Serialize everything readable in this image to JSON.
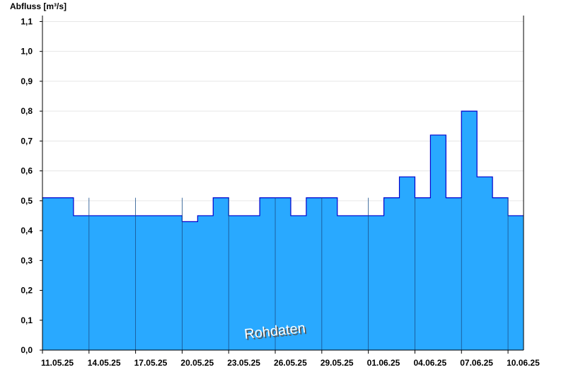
{
  "chart_data": {
    "type": "area",
    "y_axis_label": "Abfluss [m³/s]",
    "annotation": "Rohdaten",
    "x": [
      "11.05.25",
      "12.05.25",
      "13.05.25",
      "14.05.25",
      "15.05.25",
      "16.05.25",
      "17.05.25",
      "18.05.25",
      "19.05.25",
      "20.05.25",
      "21.05.25",
      "22.05.25",
      "23.05.25",
      "24.05.25",
      "25.05.25",
      "26.05.25",
      "27.05.25",
      "28.05.25",
      "29.05.25",
      "30.05.25",
      "31.05.25",
      "01.06.25",
      "02.06.25",
      "03.06.25",
      "04.06.25",
      "05.06.25",
      "06.06.25",
      "07.06.25",
      "08.06.25",
      "09.06.25",
      "10.06.25"
    ],
    "series": [
      {
        "color": "#29a9ff",
        "line_color": "#0000cc",
        "values": [
          0.51,
          0.51,
          0.45,
          0.45,
          0.45,
          0.45,
          0.45,
          0.45,
          0.45,
          0.43,
          0.45,
          0.51,
          0.45,
          0.45,
          0.51,
          0.51,
          0.45,
          0.51,
          0.51,
          0.45,
          0.45,
          0.45,
          0.51,
          0.58,
          0.51,
          0.72,
          0.51,
          0.8,
          0.58,
          0.51,
          0.45
        ]
      }
    ],
    "xlim": [
      "11.05.25",
      "11.06.25"
    ],
    "xticks": [
      "11.05.25",
      "14.05.25",
      "17.05.25",
      "20.05.25",
      "23.05.25",
      "26.05.25",
      "29.05.25",
      "01.06.25",
      "04.06.25",
      "07.06.25",
      "10.06.25"
    ],
    "ylim": [
      0,
      1.12
    ],
    "yticks": [
      {
        "value": 0,
        "label": "0,0"
      },
      {
        "value": 0.1,
        "label": "0,1"
      },
      {
        "value": 0.2,
        "label": "0,2"
      },
      {
        "value": 0.3,
        "label": "0,3"
      },
      {
        "value": 0.4,
        "label": "0,4"
      },
      {
        "value": 0.5,
        "label": "0,5"
      },
      {
        "value": 0.6,
        "label": "0,6"
      },
      {
        "value": 0.7,
        "label": "0,7"
      },
      {
        "value": 0.8,
        "label": "0,8"
      },
      {
        "value": 0.9,
        "label": "0,9"
      },
      {
        "value": 1.0,
        "label": "1,0"
      },
      {
        "value": 1.1,
        "label": "1,1"
      }
    ],
    "grid": true
  }
}
